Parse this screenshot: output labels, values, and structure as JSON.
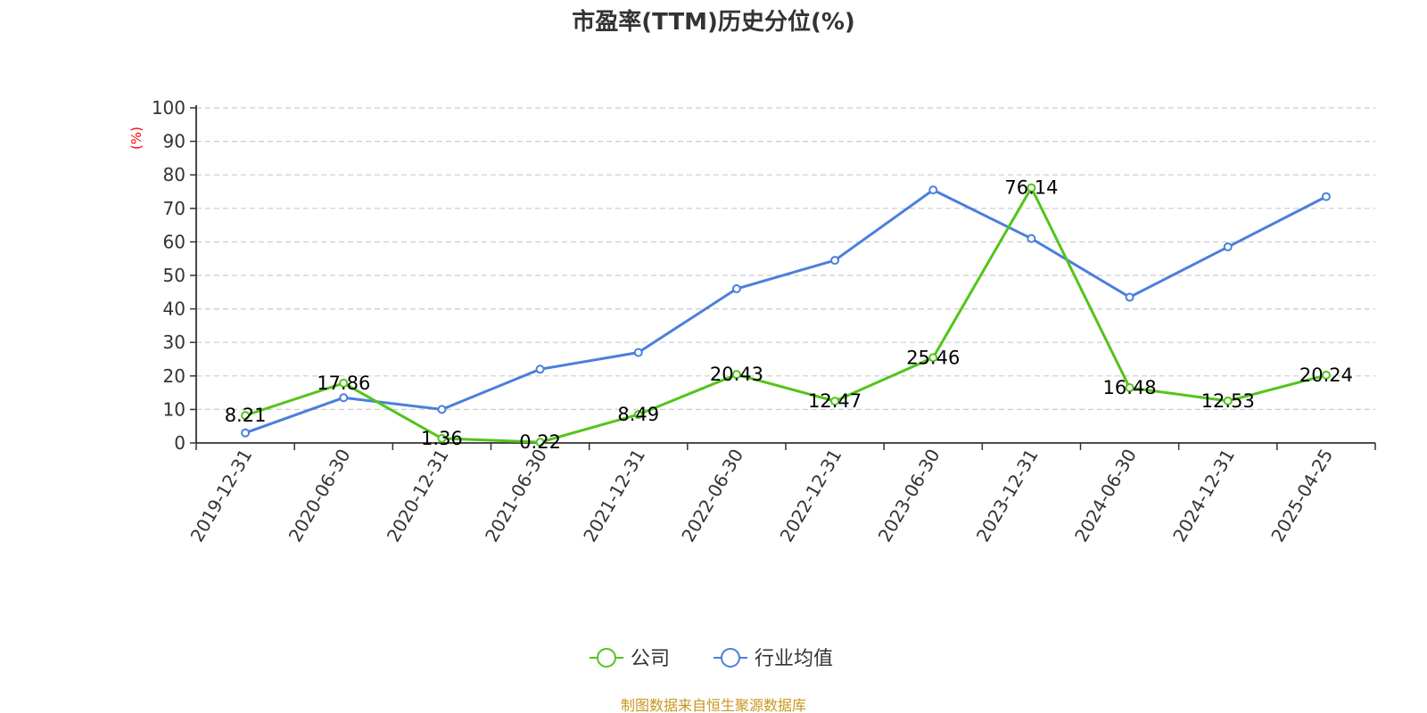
{
  "colors": {
    "company": "#52c41a",
    "industry": "#4a7fdc",
    "ylabel": "#ff0000",
    "source": "#c8961e",
    "grid": "#cccccc",
    "axis": "#333333"
  },
  "footer": {
    "source": "制图数据来自恒生聚源数据库"
  },
  "chart_data": {
    "type": "line",
    "title": "市盈率(TTM)历史分位(%)",
    "xlabel": "",
    "ylabel": "(%)",
    "ylim": [
      0,
      100
    ],
    "yticks": [
      0,
      10,
      20,
      30,
      40,
      50,
      60,
      70,
      80,
      90,
      100
    ],
    "grid": true,
    "legend_position": "bottom",
    "categories": [
      "2019-12-31",
      "2020-06-30",
      "2020-12-31",
      "2021-06-30",
      "2021-12-31",
      "2022-06-30",
      "2022-12-31",
      "2023-06-30",
      "2023-12-31",
      "2024-06-30",
      "2024-12-31",
      "2025-04-25"
    ],
    "series": [
      {
        "name": "公司",
        "values": [
          8.21,
          17.86,
          1.36,
          0.22,
          8.49,
          20.43,
          12.47,
          25.46,
          76.14,
          16.48,
          12.53,
          20.24
        ],
        "labels": [
          "8.21",
          "17.86",
          "1.36",
          "0.22",
          "8.49",
          "20.43",
          "12.47",
          "25.46",
          "76.14",
          "16.48",
          "12.53",
          "20.24"
        ]
      },
      {
        "name": "行业均值",
        "values": [
          3.0,
          13.5,
          10.0,
          22.0,
          27.0,
          46.0,
          54.5,
          75.5,
          61.0,
          43.5,
          58.5,
          73.5
        ]
      }
    ]
  }
}
